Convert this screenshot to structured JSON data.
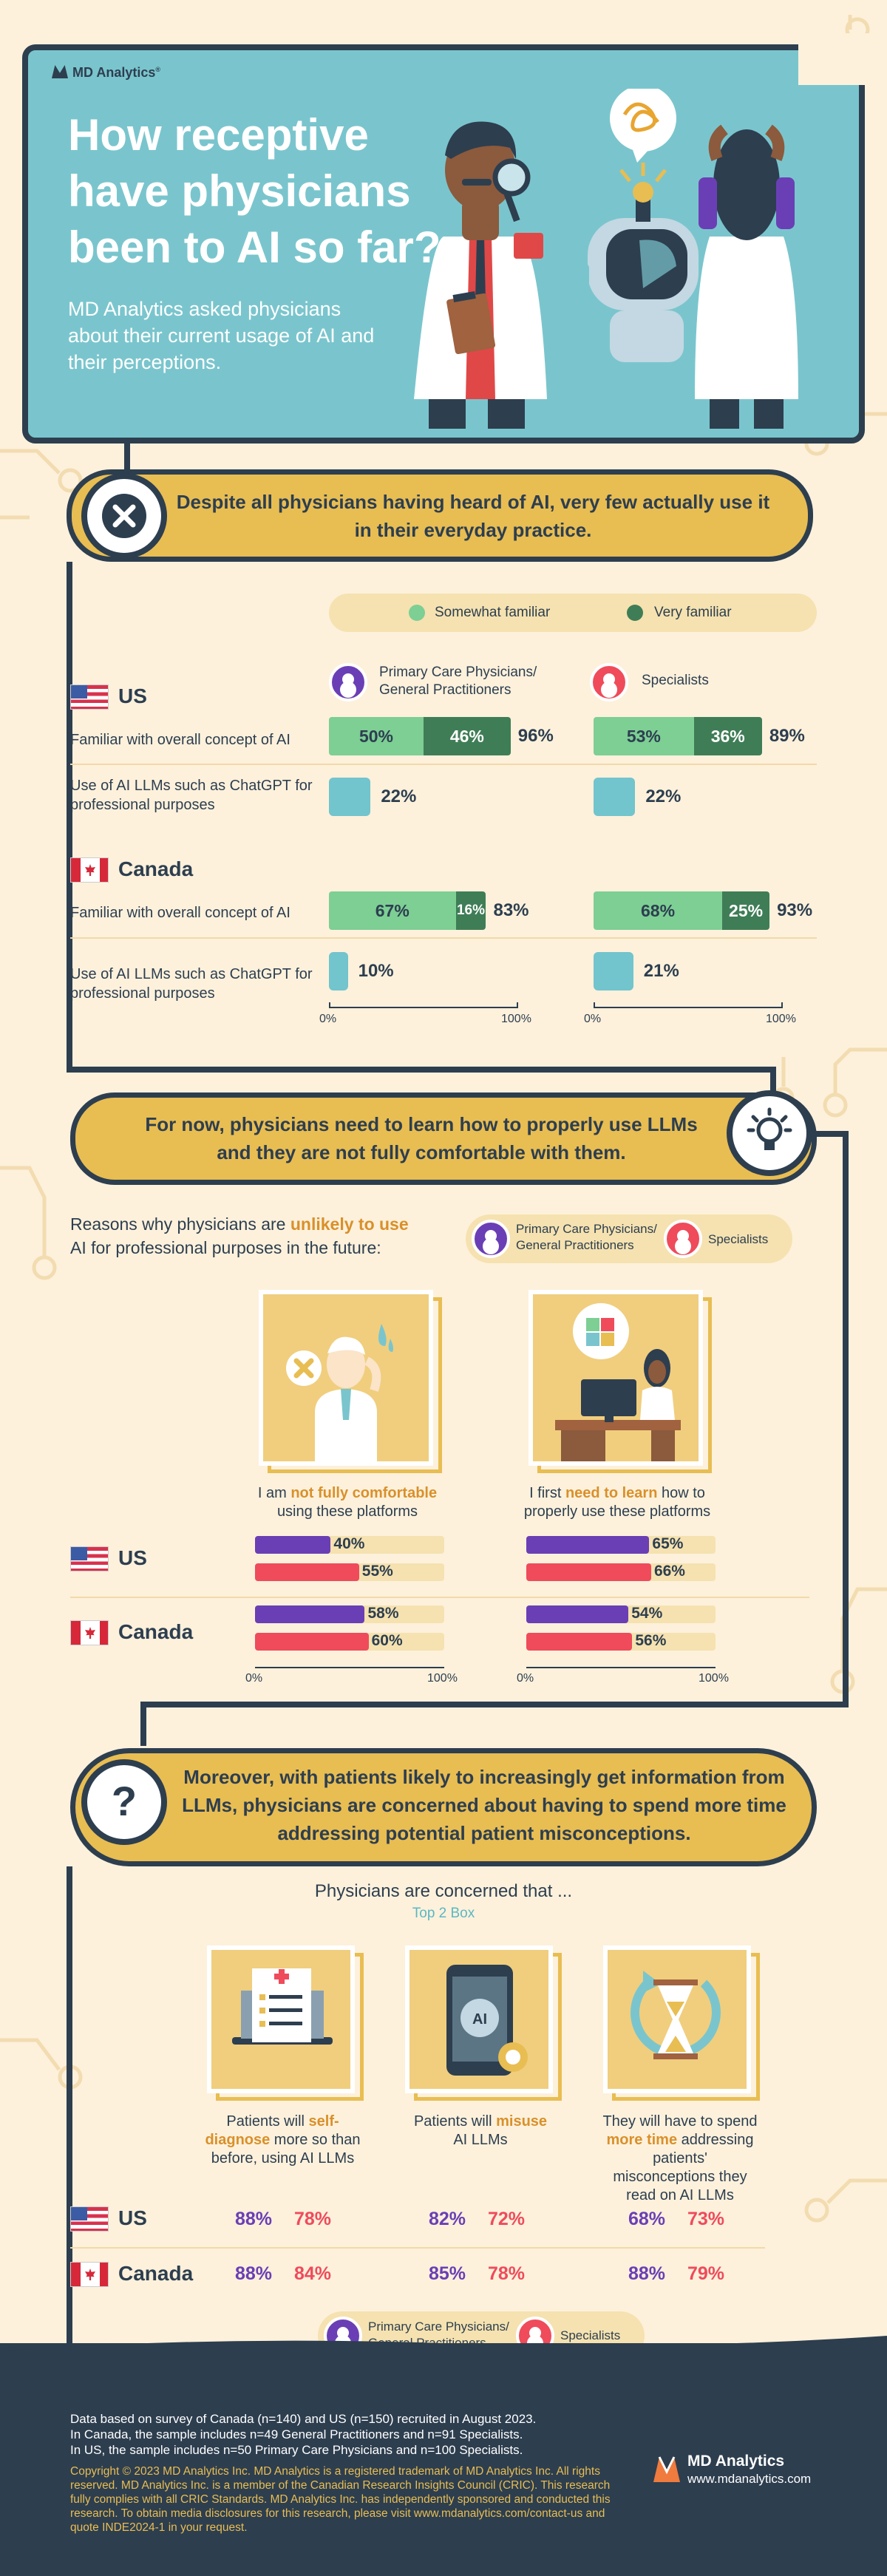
{
  "hero": {
    "brand": "MD Analytics",
    "title": "How receptive have physicians been to AI so far?",
    "subtitle": "MD Analytics asked physicians about their current usage of AI and their perceptions."
  },
  "section1": {
    "banner": "Despite all physicians having heard of AI, very few actually use it in their everyday practice.",
    "legend": [
      "Somewhat familiar",
      "Very familiar"
    ],
    "group_primary": "Primary Care Physicians/ General Practitioners",
    "group_specialists": "Specialists",
    "row_familiar": "Familiar with overall concept of AI",
    "row_llm": "Use of AI LLMs such as ChatGPT for professional purposes",
    "axis_min": "0%",
    "axis_max": "100%"
  },
  "section2": {
    "banner": "For now, physicians need to learn how to properly use LLMs and they are not fully comfortable with them.",
    "question_a": "Reasons why physicians are ",
    "question_hl": "unlikely to use",
    "question_b": "AI for professional purposes in the future:",
    "group_primary": "Primary Care Physicians/ General Practitioners",
    "group_specialists": "Specialists",
    "card1_a": "I am ",
    "card1_hl": "not fully comfortable",
    "card1_b": "using these platforms",
    "card2_a": "I first ",
    "card2_hl": "need to learn",
    "card2_b": " how to properly use these platforms",
    "axis_min": "0%",
    "axis_max": "100%"
  },
  "section3": {
    "banner": "Moreover, with patients likely to increasingly get information from LLMs, physicians are concerned about having to spend more time addressing potential patient misconceptions.",
    "heading": "Physicians are concerned that ...",
    "subheading": "Top 2 Box",
    "card1_a": "Patients will ",
    "card1_hl": "self-diagnose",
    "card1_b": " more so than before, using AI LLMs",
    "card2_a": "Patients will ",
    "card2_hl": "misuse",
    "card2_b": "AI LLMs",
    "card3_a": "They will have to spend ",
    "card3_hl": "more time",
    "card3_b": " addressing patients' misconceptions they read on AI LLMs",
    "legend_primary": "Primary Care Physicians/ General Practitioners",
    "legend_specialists": "Specialists"
  },
  "countries": {
    "us": "US",
    "canada": "Canada"
  },
  "chart_data": [
    {
      "type": "bar",
      "title": "Despite all physicians having heard of AI, very few actually use it in their everyday practice.",
      "categories": [
        "US - Familiar with overall concept of AI",
        "US - Use of AI LLMs such as ChatGPT for professional purposes",
        "Canada - Familiar with overall concept of AI",
        "Canada - Use of AI LLMs such as ChatGPT for professional purposes"
      ],
      "series": [
        {
          "name": "Primary Care Physicians/ General Practitioners - Somewhat familiar",
          "values": [
            50,
            null,
            67,
            null
          ]
        },
        {
          "name": "Primary Care Physicians/ General Practitioners - Very familiar",
          "values": [
            46,
            null,
            16,
            null
          ]
        },
        {
          "name": "Primary Care Physicians/ General Practitioners - Total",
          "values": [
            96,
            22,
            83,
            10
          ]
        },
        {
          "name": "Specialists - Somewhat familiar",
          "values": [
            53,
            null,
            68,
            null
          ]
        },
        {
          "name": "Specialists - Very familiar",
          "values": [
            36,
            null,
            25,
            null
          ]
        },
        {
          "name": "Specialists - Total",
          "values": [
            89,
            22,
            93,
            21
          ]
        }
      ],
      "xlim": [
        0,
        100
      ],
      "colors": {
        "somewhat": "#7dcf94",
        "very": "#3f7d56",
        "llm": "#72c4cd"
      }
    },
    {
      "type": "bar",
      "title": "Reasons why physicians are unlikely to use AI for professional purposes in the future:",
      "categories": [
        "US - I am not fully comfortable using these platforms",
        "Canada - I am not fully comfortable using these platforms",
        "US - I first need to learn how to properly use these platforms",
        "Canada - I first need to learn how to properly use these platforms"
      ],
      "series": [
        {
          "name": "Primary Care Physicians/ General Practitioners",
          "values": [
            40,
            58,
            65,
            54
          ]
        },
        {
          "name": "Specialists",
          "values": [
            55,
            60,
            66,
            56
          ]
        }
      ],
      "xlim": [
        0,
        100
      ],
      "colors": {
        "primary": "#6a3fb5",
        "specialists": "#ef4b5b"
      }
    },
    {
      "type": "table",
      "title": "Physicians are concerned that ...",
      "subtitle": "Top 2 Box",
      "categories": [
        "Patients will self-diagnose more so than before, using AI LLMs",
        "Patients will misuse AI LLMs",
        "They will have to spend more time addressing patients' misconceptions they read on AI LLMs"
      ],
      "series": [
        {
          "name": "US - Primary Care Physicians/ General Practitioners",
          "values": [
            88,
            82,
            68
          ]
        },
        {
          "name": "US - Specialists",
          "values": [
            78,
            72,
            73
          ]
        },
        {
          "name": "Canada - Primary Care Physicians/ General Practitioners",
          "values": [
            88,
            85,
            88
          ]
        },
        {
          "name": "Canada - Specialists",
          "values": [
            84,
            78,
            79
          ]
        }
      ]
    }
  ],
  "footer": {
    "note1": "Data based on survey of Canada (n=140) and US (n=150) recruited in August 2023.",
    "note2": "In Canada, the sample includes n=49 General Practitioners and n=91 Specialists.",
    "note3": "In US, the sample includes n=50 Primary Care Physicians and n=100 Specialists.",
    "copyright": "Copyright © 2023 MD Analytics Inc. MD Analytics is a registered trademark of MD Analytics Inc. All rights reserved. MD Analytics Inc. is a member of the Canadian Research Insights Council (CRIC). This research fully complies with all CRIC Standards. MD Analytics Inc. has independently sponsored and conducted this research. To obtain media disclosures for this research, please visit www.mdanalytics.com/contact-us and quote INDE2024-1 in your request.",
    "brand": "MD Analytics",
    "website": "www.mdanalytics.com"
  }
}
